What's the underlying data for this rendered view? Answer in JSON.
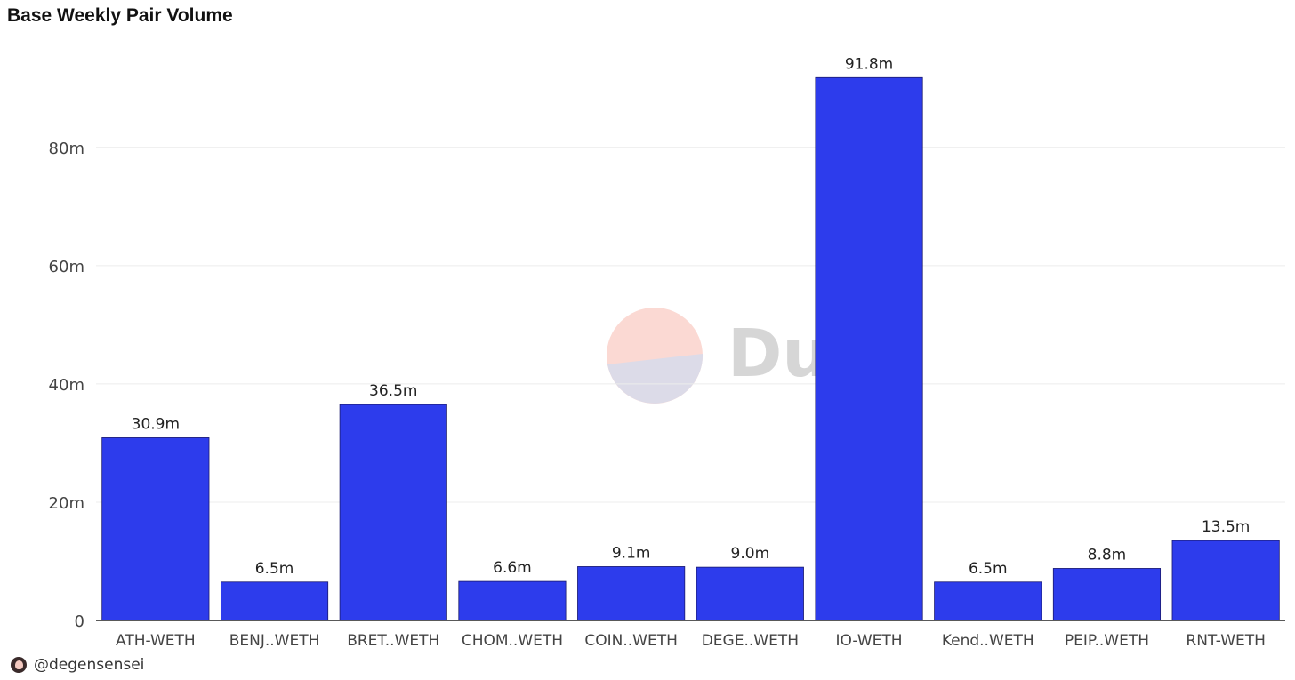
{
  "title": "Base Weekly Pair Volume",
  "author": "@degensensei",
  "watermark": {
    "text": "Dune"
  },
  "colors": {
    "bar": "#2d3cec",
    "grid": "#ececec",
    "axis": "#222222",
    "label": "#444444"
  },
  "chart_data": {
    "type": "bar",
    "categories": [
      "ATH-WETH",
      "BENJ..WETH",
      "BRET..WETH",
      "CHOM..WETH",
      "COIN..WETH",
      "DEGE..WETH",
      "IO-WETH",
      "Kend..WETH",
      "PEIP..WETH",
      "RNT-WETH"
    ],
    "values": [
      30.9,
      6.5,
      36.5,
      6.6,
      9.1,
      9.0,
      91.8,
      6.5,
      8.8,
      13.5
    ],
    "data_labels": [
      "30.9m",
      "6.5m",
      "36.5m",
      "6.6m",
      "9.1m",
      "9.0m",
      "91.8m",
      "6.5m",
      "8.8m",
      "13.5m"
    ],
    "y_ticks": [
      0,
      20,
      40,
      60,
      80
    ],
    "y_tick_labels": [
      "0",
      "20m",
      "40m",
      "60m",
      "80m"
    ],
    "ylim": [
      0,
      95
    ],
    "grid": true
  }
}
